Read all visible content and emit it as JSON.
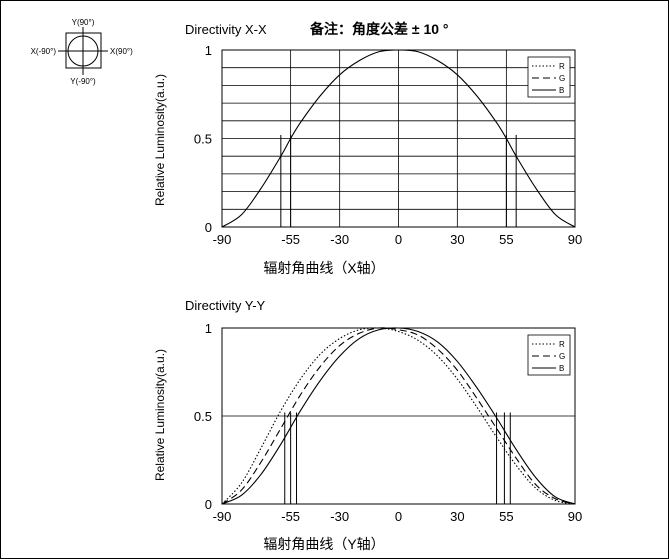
{
  "legend_diagram": {
    "top": "Y(90°)",
    "bottom": "Y(-90°)",
    "left": "X(-90°)",
    "right": "X(90°)"
  },
  "note": "备注：角度公差 ± 10 °",
  "chart_data": [
    {
      "type": "line",
      "title": "Directivity X-X",
      "xlabel": "辐射角曲线（X轴）",
      "ylabel": "Relative Luminosity(a.u.)",
      "xlim": [
        -90,
        90
      ],
      "ylim": [
        0,
        1
      ],
      "xticks": [
        "-90",
        "-55",
        "-30",
        "0",
        "30",
        "55",
        "90"
      ],
      "yticks": [
        "0",
        "0.5",
        "1"
      ],
      "grid": true,
      "legend": "top-right",
      "legend_entries": [
        "R",
        "G",
        "B"
      ],
      "x": [
        -90,
        -80,
        -70,
        -60,
        -55,
        -50,
        -40,
        -30,
        -20,
        -10,
        0,
        10,
        20,
        30,
        40,
        50,
        55,
        60,
        70,
        80,
        90
      ],
      "series": [
        {
          "name": "B",
          "style": "solid",
          "values": [
            0,
            0.07,
            0.22,
            0.4,
            0.5,
            0.59,
            0.74,
            0.86,
            0.94,
            0.99,
            1,
            0.99,
            0.94,
            0.86,
            0.74,
            0.59,
            0.5,
            0.4,
            0.22,
            0.07,
            0
          ]
        }
      ],
      "markers_x": [
        -60,
        -55,
        55,
        60
      ]
    },
    {
      "type": "line",
      "title": "Directivity Y-Y",
      "xlabel": "辐射角曲线（Y轴）",
      "ylabel": "Relative Luminosity(a.u.)",
      "xlim": [
        -90,
        90
      ],
      "ylim": [
        0,
        1
      ],
      "xticks": [
        "-90",
        "-55",
        "-30",
        "0",
        "30",
        "55",
        "90"
      ],
      "yticks": [
        "0",
        "0.5",
        "1"
      ],
      "grid": false,
      "legend": "top-right",
      "legend_entries": [
        "R",
        "G",
        "B"
      ],
      "x": [
        -90,
        -80,
        -70,
        -60,
        -50,
        -40,
        -30,
        -20,
        -10,
        0,
        10,
        20,
        30,
        40,
        50,
        60,
        70,
        80,
        90
      ],
      "series": [
        {
          "name": "R",
          "style": "dotted",
          "values": [
            0,
            0.12,
            0.32,
            0.53,
            0.71,
            0.85,
            0.94,
            0.99,
            1,
            0.98,
            0.93,
            0.84,
            0.71,
            0.55,
            0.38,
            0.22,
            0.09,
            0.02,
            0
          ]
        },
        {
          "name": "G",
          "style": "dashed",
          "values": [
            0,
            0.08,
            0.24,
            0.43,
            0.62,
            0.78,
            0.9,
            0.97,
            1,
            0.99,
            0.96,
            0.88,
            0.76,
            0.6,
            0.43,
            0.26,
            0.11,
            0.03,
            0
          ]
        },
        {
          "name": "B",
          "style": "solid",
          "values": [
            0,
            0.05,
            0.17,
            0.34,
            0.53,
            0.7,
            0.84,
            0.94,
            0.99,
            1,
            0.98,
            0.92,
            0.81,
            0.66,
            0.49,
            0.31,
            0.15,
            0.04,
            0
          ]
        }
      ],
      "markers_x": [
        -58,
        -55,
        -52,
        50,
        54,
        57
      ]
    }
  ]
}
